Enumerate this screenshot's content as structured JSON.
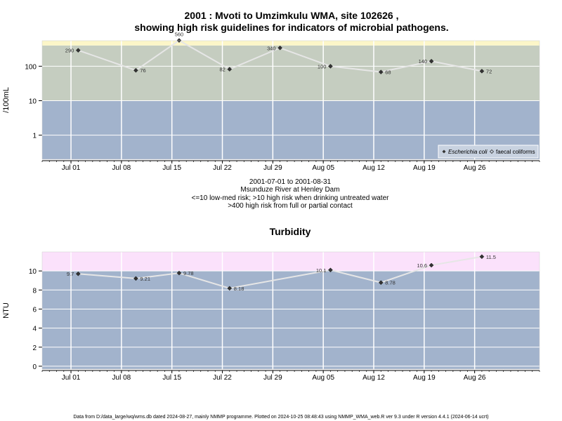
{
  "chart_data": [
    {
      "type": "line",
      "title_line1": "2001 : Mvoti to Umzimkulu WMA, site 102626 ,",
      "title_line2": "showing high risk guidelines for indicators of microbial pathogens.",
      "ylabel": "/100mL",
      "yscale": "log",
      "ylim": [
        0.2,
        550
      ],
      "yticks": [
        1,
        10,
        100
      ],
      "ytick_labels": [
        "1",
        "10",
        "100"
      ],
      "xlim": [
        "2001-06-27",
        "2001-09-04"
      ],
      "xtick_dates": [
        "2001-07-01",
        "2001-07-08",
        "2001-07-15",
        "2001-07-22",
        "2001-07-29",
        "2001-08-05",
        "2001-08-12",
        "2001-08-19",
        "2001-08-26"
      ],
      "xtick_labels": [
        "Jul 01",
        "Jul 08",
        "Jul 15",
        "Jul 22",
        "Jul 29",
        "Aug 05",
        "Aug 12",
        "Aug 19",
        "Aug 26"
      ],
      "bands": [
        {
          "from": 0.2,
          "to": 10,
          "color": "#a2b3cc"
        },
        {
          "from": 10,
          "to": 400,
          "color": "#c5cdc0"
        },
        {
          "from": 400,
          "to": 550,
          "color": "#fcf6c8"
        }
      ],
      "series": [
        {
          "name": "Escherichia coli",
          "marker": "diamond",
          "line_color": "#e6e6e6",
          "x": [
            "2001-07-02",
            "2001-07-10",
            "2001-07-16",
            "2001-07-23",
            "2001-07-30",
            "2001-08-06",
            "2001-08-13",
            "2001-08-20",
            "2001-08-27"
          ],
          "y": [
            290,
            76,
            560,
            82,
            340,
            100,
            68,
            140,
            72
          ],
          "labels": [
            "290",
            "76",
            "560",
            "82",
            "340",
            "100",
            "68",
            "140",
            "72"
          ],
          "label_side": [
            "left",
            "right",
            "above",
            "left",
            "left",
            "left",
            "right",
            "left",
            "right"
          ]
        }
      ],
      "legend": {
        "position": "bottom-right",
        "items": [
          "Escherichia coli",
          "faecal coliforms"
        ]
      },
      "caption": [
        "2001-07-01 to 2001-08-31",
        "Msunduze River at Henley Dam",
        "<=10 low-med risk; >10 high risk when drinking untreated water",
        ">400 high risk from full or partial contact"
      ]
    },
    {
      "type": "line",
      "title": "Turbidity",
      "ylabel": "NTU",
      "ylim": [
        -0.3,
        12
      ],
      "yticks": [
        0,
        2,
        4,
        6,
        8,
        10
      ],
      "ytick_labels": [
        "0",
        "2",
        "4",
        "6",
        "8",
        "10"
      ],
      "xlim": [
        "2001-06-27",
        "2001-09-04"
      ],
      "xtick_dates": [
        "2001-07-01",
        "2001-07-08",
        "2001-07-15",
        "2001-07-22",
        "2001-07-29",
        "2001-08-05",
        "2001-08-12",
        "2001-08-19",
        "2001-08-26"
      ],
      "xtick_labels": [
        "Jul 01",
        "Jul 08",
        "Jul 15",
        "Jul 22",
        "Jul 29",
        "Aug 05",
        "Aug 12",
        "Aug 19",
        "Aug 26"
      ],
      "bands": [
        {
          "from": -0.3,
          "to": 10,
          "color": "#a2b3cc"
        },
        {
          "from": 10,
          "to": 12,
          "color": "#fbe1fb"
        }
      ],
      "series": [
        {
          "name": "",
          "marker": "diamond",
          "line_color": "#e6e6e6",
          "x": [
            "2001-07-02",
            "2001-07-10",
            "2001-07-16",
            "2001-07-23",
            "2001-08-06",
            "2001-08-13",
            "2001-08-20",
            "2001-08-27"
          ],
          "y": [
            9.7,
            9.21,
            9.78,
            8.18,
            10.1,
            8.78,
            10.6,
            11.5
          ],
          "labels": [
            "9.7",
            "9.21",
            "9.78",
            "8.18",
            "10.1",
            "8.78",
            "10.6",
            "11.5"
          ],
          "label_side": [
            "left",
            "right",
            "right",
            "right",
            "left",
            "right",
            "left",
            "right"
          ]
        }
      ]
    }
  ],
  "footer": "Data from D:/data_large/wq/wms.db dated 2024-08-27, mainly NMMP programme. Plotted on 2024-10-25 08:48:43 using NMMP_WMA_web.R ver 9.3 under R version 4.4.1 (2024-06-14 ucrt)"
}
